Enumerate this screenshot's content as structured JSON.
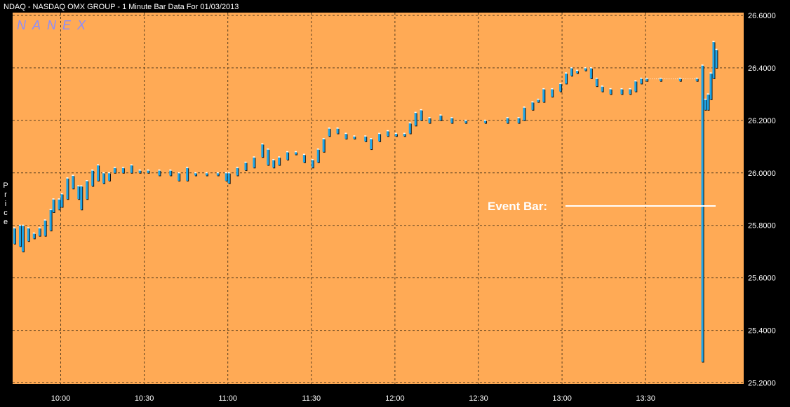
{
  "title": "NDAQ - NASDAQ OMX GROUP - 1 Minute Bar Data For 01/03/2013",
  "watermark": "NANEX",
  "colors": {
    "background": "#000000",
    "plot": "#ffaa55",
    "bar": "#1fa6e8",
    "bar_shadow": "#111111",
    "grid": "#5a4020",
    "text": "#ffffff",
    "watermark": "#8a8cff"
  },
  "chart_data": {
    "type": "ohlc-bar",
    "title": "NDAQ - NASDAQ OMX GROUP - 1 Minute Bar Data For 01/03/2013",
    "xlabel": "",
    "ylabel": "Price",
    "x_ticks": [
      "10:00",
      "10:30",
      "11:00",
      "11:30",
      "12:00",
      "12:30",
      "13:00",
      "13:30"
    ],
    "y_ticks": [
      "25.2000",
      "25.4000",
      "25.6000",
      "25.8000",
      "26.0000",
      "26.2000",
      "26.4000",
      "26.6000"
    ],
    "ylim": [
      25.2,
      26.6
    ],
    "xlim": [
      "09:43",
      "13:55"
    ],
    "grid": true,
    "annotation": {
      "text": "Event Bar:",
      "target_time": "13:50"
    },
    "series": [
      {
        "name": "",
        "points": [
          [
            "09:43",
            25.73,
            25.79
          ],
          [
            "09:45",
            25.72,
            25.8
          ],
          [
            "09:46",
            25.7,
            25.8
          ],
          [
            "09:48",
            25.74,
            25.79
          ],
          [
            "09:50",
            25.75,
            25.77
          ],
          [
            "09:52",
            25.76,
            25.79
          ],
          [
            "09:54",
            25.76,
            25.82
          ],
          [
            "09:56",
            25.78,
            25.86
          ],
          [
            "09:57",
            25.85,
            25.9
          ],
          [
            "09:59",
            25.86,
            25.9
          ],
          [
            "10:00",
            25.87,
            25.92
          ],
          [
            "10:02",
            25.9,
            25.98
          ],
          [
            "10:04",
            25.94,
            25.99
          ],
          [
            "10:06",
            25.9,
            25.95
          ],
          [
            "10:07",
            25.86,
            25.95
          ],
          [
            "10:09",
            25.9,
            25.97
          ],
          [
            "10:11",
            25.95,
            26.01
          ],
          [
            "10:13",
            25.97,
            26.03
          ],
          [
            "10:15",
            25.96,
            26.0
          ],
          [
            "10:17",
            25.97,
            26.0
          ],
          [
            "10:19",
            26.0,
            26.02
          ],
          [
            "10:22",
            26.0,
            26.02
          ],
          [
            "10:25",
            26.0,
            26.03
          ],
          [
            "10:28",
            26.0,
            26.01
          ],
          [
            "10:31",
            26.0,
            26.01
          ],
          [
            "10:35",
            25.99,
            26.01
          ],
          [
            "10:39",
            25.99,
            26.01
          ],
          [
            "10:42",
            25.97,
            26.0
          ],
          [
            "10:45",
            25.97,
            26.02
          ],
          [
            "10:48",
            25.99,
            26.0
          ],
          [
            "10:52",
            25.99,
            26.0
          ],
          [
            "10:56",
            25.99,
            26.0
          ],
          [
            "10:59",
            25.97,
            26.0
          ],
          [
            "11:00",
            25.96,
            26.0
          ],
          [
            "11:03",
            25.99,
            26.02
          ],
          [
            "11:06",
            26.01,
            26.04
          ],
          [
            "11:09",
            26.02,
            26.06
          ],
          [
            "11:12",
            26.06,
            26.11
          ],
          [
            "11:14",
            26.03,
            26.09
          ],
          [
            "11:16",
            26.02,
            26.05
          ],
          [
            "11:18",
            26.03,
            26.06
          ],
          [
            "11:21",
            26.05,
            26.08
          ],
          [
            "11:24",
            26.07,
            26.08
          ],
          [
            "11:27",
            26.04,
            26.07
          ],
          [
            "11:30",
            26.02,
            26.05
          ],
          [
            "11:32",
            26.04,
            26.09
          ],
          [
            "11:34",
            26.08,
            26.13
          ],
          [
            "11:36",
            26.14,
            26.17
          ],
          [
            "11:39",
            26.15,
            26.17
          ],
          [
            "11:42",
            26.13,
            26.15
          ],
          [
            "11:45",
            26.13,
            26.14
          ],
          [
            "11:49",
            26.12,
            26.14
          ],
          [
            "11:51",
            26.09,
            26.13
          ],
          [
            "11:54",
            26.12,
            26.15
          ],
          [
            "11:57",
            26.14,
            26.16
          ],
          [
            "12:00",
            26.14,
            26.15
          ],
          [
            "12:03",
            26.14,
            26.15
          ],
          [
            "12:05",
            26.15,
            26.19
          ],
          [
            "12:07",
            26.18,
            26.23
          ],
          [
            "12:09",
            26.2,
            26.24
          ],
          [
            "12:12",
            26.19,
            26.21
          ],
          [
            "12:16",
            26.2,
            26.22
          ],
          [
            "12:20",
            26.19,
            26.21
          ],
          [
            "12:25",
            26.19,
            26.2
          ],
          [
            "12:32",
            26.19,
            26.2
          ],
          [
            "12:40",
            26.19,
            26.21
          ],
          [
            "12:44",
            26.19,
            26.21
          ],
          [
            "12:46",
            26.2,
            26.25
          ],
          [
            "12:49",
            26.24,
            26.27
          ],
          [
            "12:51",
            26.27,
            26.28
          ],
          [
            "12:53",
            26.27,
            26.32
          ],
          [
            "12:56",
            26.29,
            26.32
          ],
          [
            "12:59",
            26.31,
            26.34
          ],
          [
            "13:01",
            26.34,
            26.38
          ],
          [
            "13:03",
            26.37,
            26.4
          ],
          [
            "13:05",
            26.38,
            26.39
          ],
          [
            "13:08",
            26.39,
            26.4
          ],
          [
            "13:10",
            26.36,
            26.4
          ],
          [
            "13:12",
            26.33,
            26.36
          ],
          [
            "13:14",
            26.31,
            26.33
          ],
          [
            "13:17",
            26.3,
            26.32
          ],
          [
            "13:21",
            26.3,
            26.32
          ],
          [
            "13:24",
            26.3,
            26.32
          ],
          [
            "13:26",
            26.31,
            26.35
          ],
          [
            "13:28",
            26.34,
            26.36
          ],
          [
            "13:30",
            26.35,
            26.36
          ],
          [
            "13:35",
            26.35,
            26.36
          ],
          [
            "13:42",
            26.35,
            26.36
          ],
          [
            "13:48",
            26.35,
            26.36
          ],
          [
            "13:50",
            25.28,
            26.41
          ],
          [
            "13:51",
            26.24,
            26.28
          ],
          [
            "13:52",
            26.24,
            26.3
          ],
          [
            "13:53",
            26.28,
            26.38
          ],
          [
            "13:54",
            26.36,
            26.5
          ],
          [
            "13:55",
            26.4,
            26.47
          ]
        ]
      }
    ]
  }
}
